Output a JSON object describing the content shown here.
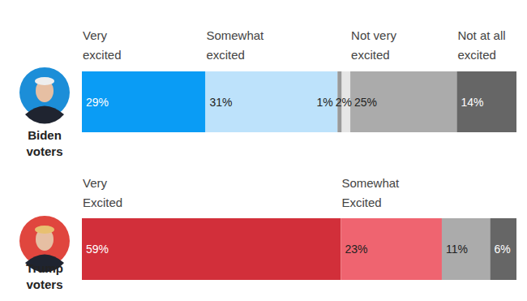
{
  "chart_data": [
    {
      "type": "bar",
      "orientation": "horizontal",
      "stacked": true,
      "data_labels": true,
      "tick_labels": false,
      "xlim": [
        0,
        102
      ],
      "categories": [
        "Biden voters"
      ],
      "series": [
        {
          "name": "Very excited",
          "color": "#0a9cf5",
          "values": [
            29
          ],
          "value_labels": [
            "29%"
          ]
        },
        {
          "name": "Somewhat excited",
          "color": "#bde2fb",
          "values": [
            31
          ],
          "value_labels": [
            "31%"
          ]
        },
        {
          "color": "#999999",
          "values": [
            1
          ],
          "value_labels": [
            "1%"
          ]
        },
        {
          "color": "#e6e6e6",
          "values": [
            2
          ],
          "value_labels": [
            "2%"
          ]
        },
        {
          "name": "Not very excited",
          "color": "#ababab",
          "values": [
            25
          ],
          "value_labels": [
            "25%"
          ]
        },
        {
          "name": "Not at all excited",
          "color": "#666666",
          "values": [
            14
          ],
          "value_labels": [
            "14%"
          ]
        }
      ]
    },
    {
      "type": "bar",
      "orientation": "horizontal",
      "stacked": true,
      "data_labels": true,
      "tick_labels": false,
      "xlim": [
        0,
        99
      ],
      "categories": [
        "Trump voters"
      ],
      "series": [
        {
          "name": "Very Excited",
          "color": "#d22f3a",
          "values": [
            59
          ],
          "value_labels": [
            "59%"
          ]
        },
        {
          "name": "Somewhat Excited",
          "color": "#ef6470",
          "values": [
            23
          ],
          "value_labels": [
            "23%"
          ]
        },
        {
          "color": "#ababab",
          "values": [
            11
          ],
          "value_labels": [
            "11%"
          ]
        },
        {
          "color": "#666666",
          "values": [
            6
          ],
          "value_labels": [
            "6%"
          ]
        }
      ]
    }
  ]
}
